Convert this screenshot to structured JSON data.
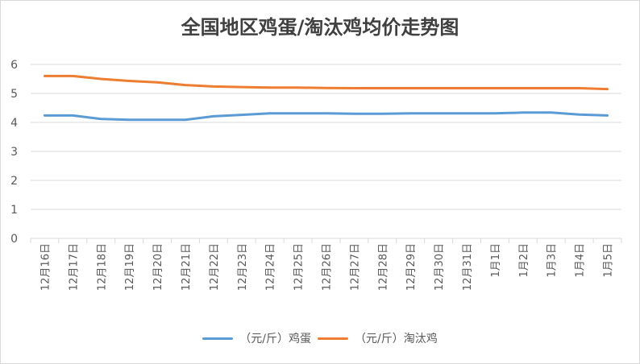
{
  "colors": {
    "egg": "#5b9bd5",
    "hen": "#ed7d31",
    "grid": "#d9d9d9",
    "text": "#595959"
  },
  "chart_data": {
    "type": "line",
    "title": "全国地区鸡蛋/淘汰鸡均价走势图",
    "xlabel": "",
    "ylabel": "",
    "ylim": [
      0,
      6
    ],
    "yticks": [
      0,
      1,
      2,
      3,
      4,
      5,
      6
    ],
    "grid": true,
    "legend_position": "bottom",
    "categories": [
      "12月16日",
      "12月17日",
      "12月18日",
      "12月19日",
      "12月20日",
      "12月21日",
      "12月22日",
      "12月23日",
      "12月24日",
      "12月25日",
      "12月26日",
      "12月27日",
      "12月28日",
      "12月29日",
      "12月30日",
      "12月31日",
      "1月1日",
      "1月2日",
      "1月3日",
      "1月4日",
      "1月5日"
    ],
    "series": [
      {
        "name": "（元/斤）鸡蛋",
        "color": "#5b9bd5",
        "values": [
          4.24,
          4.24,
          4.12,
          4.09,
          4.09,
          4.09,
          4.21,
          4.26,
          4.31,
          4.31,
          4.31,
          4.3,
          4.3,
          4.31,
          4.31,
          4.31,
          4.31,
          4.34,
          4.34,
          4.27,
          4.24
        ]
      },
      {
        "name": "（元/斤）淘汰鸡",
        "color": "#ed7d31",
        "values": [
          5.6,
          5.6,
          5.5,
          5.43,
          5.38,
          5.29,
          5.24,
          5.22,
          5.2,
          5.2,
          5.19,
          5.18,
          5.18,
          5.18,
          5.18,
          5.18,
          5.18,
          5.18,
          5.18,
          5.18,
          5.15
        ]
      }
    ]
  }
}
